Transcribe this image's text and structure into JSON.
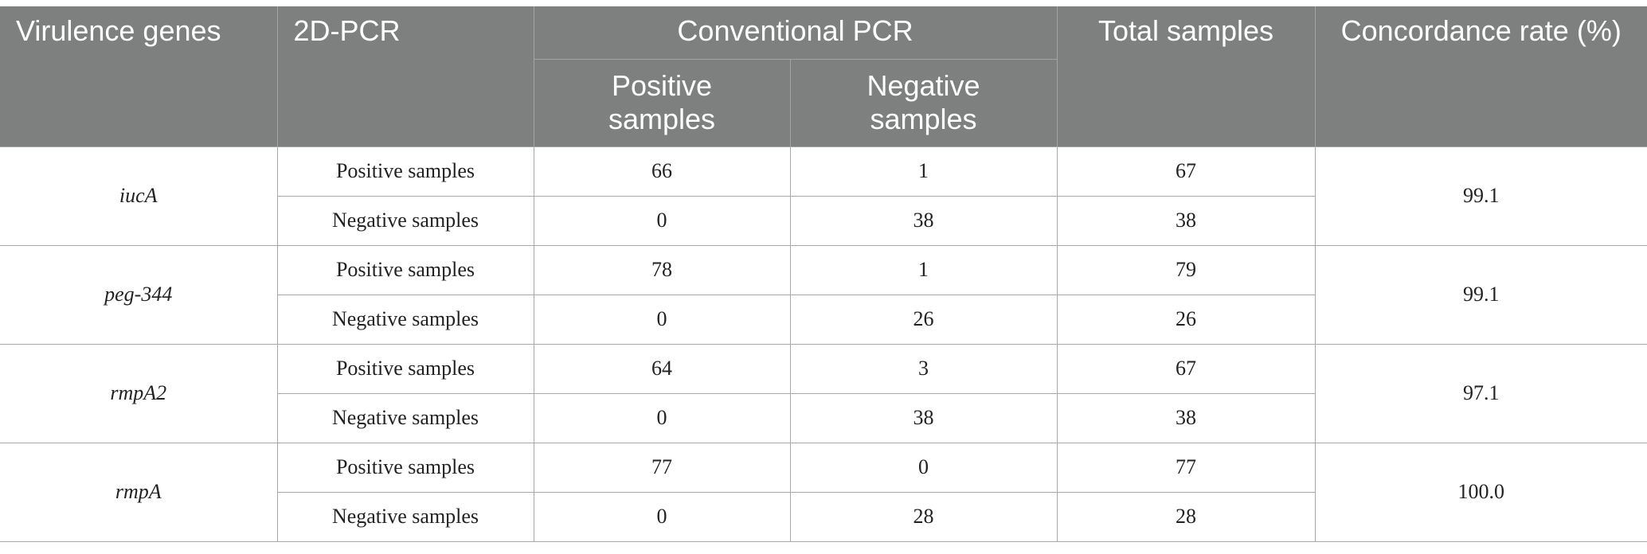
{
  "headers": {
    "gene": "Virulence genes",
    "method_2d": "2D-PCR",
    "conventional": "Conventional PCR",
    "positive": "Positive samples",
    "negative": "Negative samples",
    "total": "Total samples",
    "rate": "Concordance rate (%)"
  },
  "rows": [
    {
      "gene": "iucA",
      "rate": "99.1",
      "pos": {
        "label": "Positive samples",
        "p": "66",
        "n": "1",
        "total": "67"
      },
      "neg": {
        "label": "Negative samples",
        "p": "0",
        "n": "38",
        "total": "38"
      }
    },
    {
      "gene": "peg-344",
      "rate": "99.1",
      "pos": {
        "label": "Positive samples",
        "p": "78",
        "n": "1",
        "total": "79"
      },
      "neg": {
        "label": "Negative samples",
        "p": "0",
        "n": "26",
        "total": "26"
      }
    },
    {
      "gene": "rmpA2",
      "rate": "97.1",
      "pos": {
        "label": "Positive samples",
        "p": "64",
        "n": "3",
        "total": "67"
      },
      "neg": {
        "label": "Negative samples",
        "p": "0",
        "n": "38",
        "total": "38"
      }
    },
    {
      "gene": "rmpA",
      "rate": "100.0",
      "pos": {
        "label": "Positive samples",
        "p": "77",
        "n": "0",
        "total": "77"
      },
      "neg": {
        "label": "Negative samples",
        "p": "0",
        "n": "28",
        "total": "28"
      }
    }
  ]
}
